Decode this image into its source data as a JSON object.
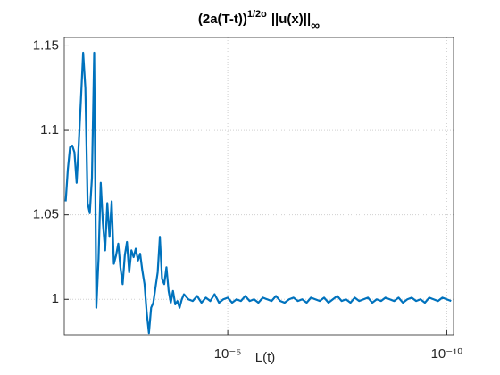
{
  "chart_data": {
    "type": "line",
    "title": [
      "(2a(T-t))",
      "1/2σ",
      " ||u(x)||",
      "∞"
    ],
    "xlabel": "L(t)",
    "x_log": true,
    "x_reversed": true,
    "grid": true,
    "color": "#0072bd",
    "xlim": [
      7e-11,
      0.054
    ],
    "xticks": [
      {
        "value": 1e-10,
        "label": "10⁻¹⁰"
      },
      {
        "value": 1e-05,
        "label": "10⁻⁵"
      }
    ],
    "ylim": [
      0.979,
      1.155
    ],
    "yticks": [
      1,
      1.05,
      1.1,
      1.15
    ],
    "x": [
      0.0501,
      0.0447,
      0.0398,
      0.0355,
      0.0316,
      0.0282,
      0.0251,
      0.0224,
      0.02,
      0.0178,
      0.0158,
      0.0141,
      0.0126,
      0.0112,
      0.01,
      0.00891,
      0.00794,
      0.00708,
      0.00631,
      0.00562,
      0.00501,
      0.00447,
      0.00398,
      0.00355,
      0.00316,
      0.00282,
      0.00251,
      0.00224,
      0.002,
      0.00178,
      0.00158,
      0.00141,
      0.00126,
      0.00112,
      0.001,
      0.000891,
      0.000794,
      0.000708,
      0.000631,
      0.000562,
      0.000501,
      0.000447,
      0.000398,
      0.000355,
      0.000316,
      0.000282,
      0.000251,
      0.000224,
      0.0002,
      0.000178,
      0.000158,
      0.000141,
      0.000126,
      0.000112,
      0.0001,
      7.94e-05,
      6.31e-05,
      5.01e-05,
      3.98e-05,
      3.16e-05,
      2.51e-05,
      2e-05,
      1.58e-05,
      1.26e-05,
      1e-05,
      7.94e-06,
      6.31e-06,
      5.01e-06,
      3.98e-06,
      3.16e-06,
      2.51e-06,
      2e-06,
      1.58e-06,
      1.26e-06,
      1e-06,
      7.94e-07,
      6.31e-07,
      5.01e-07,
      3.98e-07,
      3.16e-07,
      2.51e-07,
      2e-07,
      1.58e-07,
      1.26e-07,
      1e-07,
      7.94e-08,
      6.31e-08,
      5.01e-08,
      3.98e-08,
      3.16e-08,
      2.51e-08,
      2e-08,
      1.58e-08,
      1.26e-08,
      1e-08,
      7.94e-09,
      6.31e-09,
      5.01e-09,
      3.98e-09,
      3.16e-09,
      2.51e-09,
      2e-09,
      1.58e-09,
      1.26e-09,
      1e-09,
      7.94e-10,
      6.31e-10,
      5.01e-10,
      3.98e-10,
      3.16e-10,
      2.51e-10,
      2e-10,
      1.58e-10,
      1.26e-10,
      1e-10,
      7.94e-11
    ],
    "values": [
      1.058,
      1.077,
      1.09,
      1.091,
      1.087,
      1.069,
      1.093,
      1.119,
      1.146,
      1.125,
      1.057,
      1.051,
      1.072,
      1.146,
      0.995,
      1.024,
      1.069,
      1.045,
      1.029,
      1.057,
      1.037,
      1.058,
      1.021,
      1.026,
      1.033,
      1.019,
      1.009,
      1.026,
      1.034,
      1.016,
      1.029,
      1.025,
      1.03,
      1.023,
      1.027,
      1.017,
      1.009,
      0.992,
      0.98,
      0.995,
      0.998,
      1.007,
      1.016,
      1.037,
      1.012,
      1.009,
      1.019,
      1.005,
      0.998,
      1.005,
      0.997,
      0.999,
      0.995,
      1.0,
      1.003,
      1.0,
      0.999,
      1.002,
      0.998,
      1.001,
      0.999,
      1.003,
      0.998,
      1.0,
      1.001,
      0.998,
      1.0,
      0.999,
      1.002,
      0.999,
      1.0,
      0.998,
      1.001,
      1.0,
      0.999,
      1.002,
      0.999,
      0.998,
      1.0,
      1.001,
      0.999,
      1.0,
      0.998,
      1.001,
      1.0,
      0.999,
      1.001,
      0.998,
      1.0,
      1.002,
      0.999,
      1.0,
      0.998,
      1.001,
      0.999,
      1.0,
      1.001,
      0.998,
      1.0,
      0.999,
      1.001,
      1.0,
      0.999,
      1.001,
      0.998,
      1.0,
      1.001,
      0.999,
      1.0,
      0.998,
      1.001,
      1.0,
      0.999,
      1.001,
      1.0,
      0.999
    ]
  }
}
